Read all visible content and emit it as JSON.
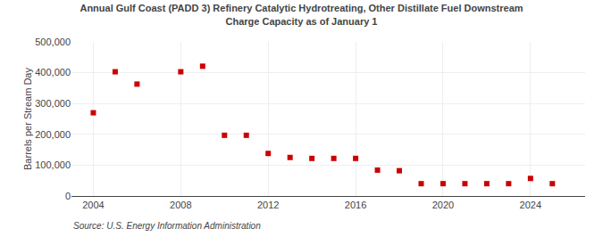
{
  "chart_data": {
    "type": "scatter",
    "title": "Annual Gulf Coast (PADD 3) Refinery Catalytic Hydrotreating, Other Distillate Fuel Downstream\nCharge Capacity as of January 1",
    "ylabel": "Barrels per Stream Day",
    "source": "Source: U.S. Energy Information Administration",
    "x": [
      2004,
      2005,
      2006,
      2008,
      2009,
      2010,
      2011,
      2012,
      2013,
      2014,
      2015,
      2016,
      2017,
      2018,
      2019,
      2020,
      2021,
      2022,
      2023,
      2024,
      2025
    ],
    "values": [
      270000,
      403000,
      363000,
      403000,
      421000,
      197000,
      197000,
      138000,
      125000,
      122000,
      122000,
      122000,
      84000,
      82000,
      40000,
      40000,
      40000,
      40000,
      40000,
      57000,
      40000
    ],
    "color": "#cc0000",
    "marker": "square",
    "xlim": [
      2003.0,
      2026.5
    ],
    "xticks": [
      2004,
      2008,
      2012,
      2016,
      2020,
      2024
    ],
    "ylim": [
      0,
      500000
    ],
    "yticks": [
      0,
      {
        "value": 100000,
        "label": "100,000"
      },
      {
        "value": 200000,
        "label": "200,000"
      },
      {
        "value": 300000,
        "label": "300,000"
      },
      {
        "value": 400000,
        "label": "400,000"
      },
      {
        "value": 500000,
        "label": "500,000"
      }
    ],
    "grid": true
  }
}
